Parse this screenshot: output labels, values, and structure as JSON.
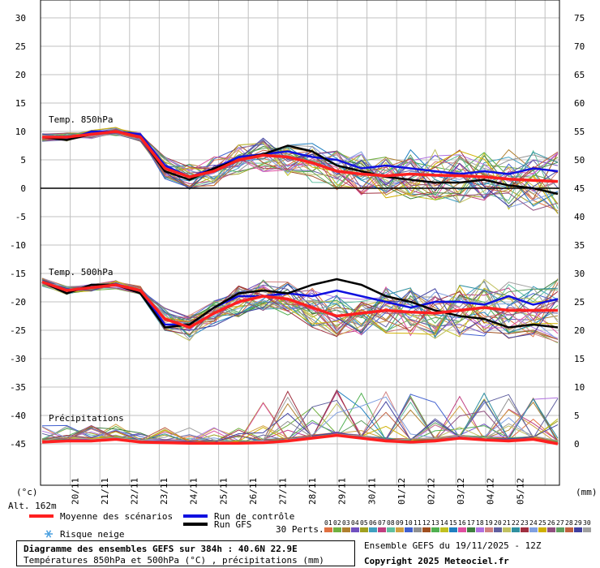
{
  "chart_data": {
    "type": "line",
    "left_axis": {
      "unit": "(°c)",
      "ticks": [
        "30",
        "25",
        "20",
        "15",
        "10",
        "5",
        "0",
        "-5",
        "-10",
        "-15",
        "-20",
        "-25",
        "-30",
        "-35",
        "-40",
        "-45"
      ]
    },
    "right_axis": {
      "unit": "(mm)",
      "ticks": [
        "75",
        "70",
        "65",
        "60",
        "55",
        "50",
        "45",
        "40",
        "35",
        "30",
        "25",
        "20",
        "15",
        "10",
        "5",
        "0"
      ]
    },
    "dates": [
      "20/11",
      "21/11",
      "22/11",
      "23/11",
      "24/11",
      "25/11",
      "26/11",
      "27/11",
      "28/11",
      "29/11",
      "30/11",
      "01/12",
      "02/12",
      "03/12",
      "04/12",
      "05/12"
    ],
    "altitude": "Alt. 162m",
    "panel_labels": {
      "t850": "Temp. 850hPa",
      "t500": "Temp. 500hPa",
      "precip": "Précipitations"
    },
    "legend": {
      "mean": "Moyenne des scénarios",
      "control": "Run de contrôle",
      "gfs": "Run GFS",
      "snow": "Risque neige",
      "perts": "30 Perts."
    },
    "member_ids": [
      "01",
      "02",
      "03",
      "04",
      "05",
      "06",
      "07",
      "08",
      "09",
      "10",
      "11",
      "12",
      "13",
      "14",
      "15",
      "16",
      "17",
      "18",
      "19",
      "20",
      "21",
      "22",
      "23",
      "24",
      "25",
      "26",
      "27",
      "28",
      "29",
      "30"
    ],
    "member_colors": [
      "#e07040",
      "#70b040",
      "#b08030",
      "#7050c0",
      "#a0a020",
      "#40a0c0",
      "#c04080",
      "#60c0a0",
      "#d0a040",
      "#4060d0",
      "#909090",
      "#a05020",
      "#50b050",
      "#c0c020",
      "#2080c0",
      "#e050a0",
      "#408040",
      "#b070e0",
      "#d08080",
      "#6060a0",
      "#c0c060",
      "#3090a0",
      "#a03040",
      "#80a0e0",
      "#d0b000",
      "#905080",
      "#60a060",
      "#c06040",
      "#4040a0",
      "#a0a0a0"
    ],
    "t850": {
      "mean": [
        9,
        9,
        9.5,
        10,
        9,
        3.5,
        2,
        3,
        5,
        5.8,
        5.5,
        4.5,
        3,
        2.5,
        2.2,
        2.5,
        2.3,
        2.2,
        2,
        1.6,
        1.4,
        1.2
      ],
      "control": [
        9,
        8.5,
        10,
        10,
        9.5,
        4,
        2,
        3.5,
        5.5,
        6,
        6.5,
        5.5,
        5,
        3.5,
        4,
        3.5,
        3,
        2.5,
        3,
        2.5,
        3.5,
        3
      ],
      "gfs": [
        9,
        8.5,
        9.5,
        10,
        9,
        3,
        1.5,
        3.5,
        5,
        6,
        7.5,
        6.5,
        4,
        3,
        2,
        1.5,
        1,
        1,
        1.5,
        0.5,
        0,
        -1
      ]
    },
    "t500": {
      "mean": [
        -16.5,
        -18,
        -17.5,
        -17,
        -18,
        -23,
        -24.5,
        -22,
        -20,
        -19,
        -19.5,
        -21,
        -22.5,
        -22,
        -21.5,
        -21.8,
        -22,
        -21.5,
        -21,
        -21.5,
        -21.5,
        -21.5
      ],
      "control": [
        -16.5,
        -18.5,
        -17,
        -17,
        -18,
        -24,
        -24,
        -21,
        -19,
        -19,
        -18.5,
        -19,
        -18,
        -19,
        -20,
        -21,
        -20,
        -20,
        -20.5,
        -19,
        -20.5,
        -19.5
      ],
      "gfs": [
        -16.5,
        -18.5,
        -17,
        -17,
        -18.5,
        -24.5,
        -24,
        -21,
        -18.5,
        -18,
        -18.5,
        -17,
        -16,
        -17,
        -19,
        -20,
        -21.5,
        -22.5,
        -23,
        -24.5,
        -24,
        -24.5
      ]
    },
    "precip": {
      "mean": [
        0.3,
        0.5,
        0.5,
        0.8,
        0.3,
        0.2,
        0.1,
        0.1,
        0.1,
        0.2,
        0.5,
        1,
        1.5,
        1,
        0.5,
        0.3,
        0.5,
        1,
        0.7,
        0.5,
        0.8,
        0
      ]
    }
  },
  "footer": {
    "title": "Diagramme des ensembles GEFS sur 384h : 40.6N 22.9E",
    "subtitle": "Températures 850hPa et 500hPa (°C) , précipitations (mm)",
    "ensemble": "Ensemble GEFS du 19/11/2025 - 12Z",
    "copyright": "Copyright 2025 Meteociel.fr"
  },
  "colors": {
    "mean": "#ff2020",
    "control": "#1010e0",
    "gfs": "#000000",
    "grid": "#c0c0c0"
  }
}
